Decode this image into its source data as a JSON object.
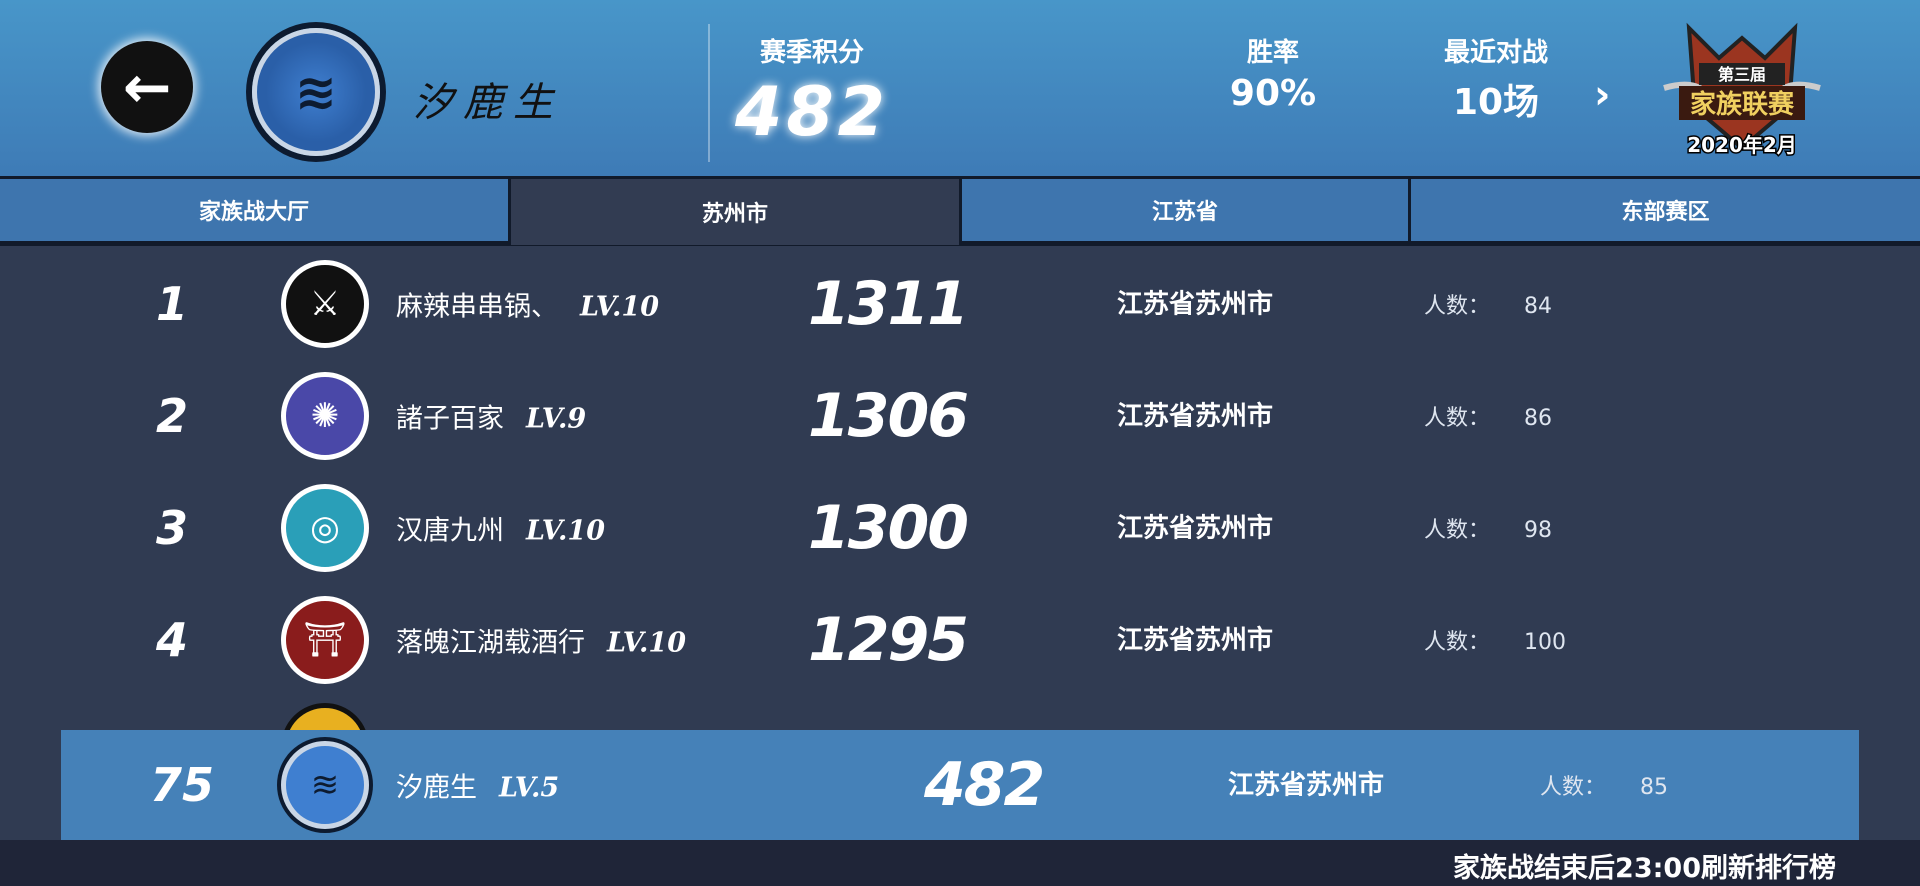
{
  "header": {
    "family_name": "汐鹿生",
    "season_points_label": "赛季积分",
    "season_points": "482",
    "win_rate_label": "胜率",
    "win_rate": "90%",
    "recent_label": "最近对战",
    "recent_value": "10场",
    "badge": {
      "line1": "第三届",
      "line2": "家族联赛",
      "date": "2020年2月"
    }
  },
  "tabs": [
    {
      "label": "家族战大厅"
    },
    {
      "label": "苏州市",
      "active": true
    },
    {
      "label": "江苏省"
    },
    {
      "label": "东部赛区"
    }
  ],
  "members_label": "人数：",
  "rows": [
    {
      "rank": "1",
      "name": "麻辣串串锅、",
      "level": "LV.10",
      "score": "1311",
      "location": "江苏省苏州市",
      "members": "84",
      "icon": "crossed-swords-icon",
      "color": "#111111"
    },
    {
      "rank": "2",
      "name": "諸子百家",
      "level": "LV.9",
      "score": "1306",
      "location": "江苏省苏州市",
      "members": "86",
      "icon": "spirit-icon",
      "color": "#4a48a8"
    },
    {
      "rank": "3",
      "name": "汉唐九州",
      "level": "LV.10",
      "score": "1300",
      "location": "江苏省苏州市",
      "members": "98",
      "icon": "wave-swirl-icon",
      "color": "#2a9fb8"
    },
    {
      "rank": "4",
      "name": "落魄江湖载酒行",
      "level": "LV.10",
      "score": "1295",
      "location": "江苏省苏州市",
      "members": "100",
      "icon": "torii-gate-icon",
      "color": "#8a1c1c"
    }
  ],
  "my_row": {
    "rank": "75",
    "name": "汐鹿生",
    "level": "LV.5",
    "score": "482",
    "location": "江苏省苏州市",
    "members": "85"
  },
  "footer": "家族战结束后23:00刷新排行榜"
}
